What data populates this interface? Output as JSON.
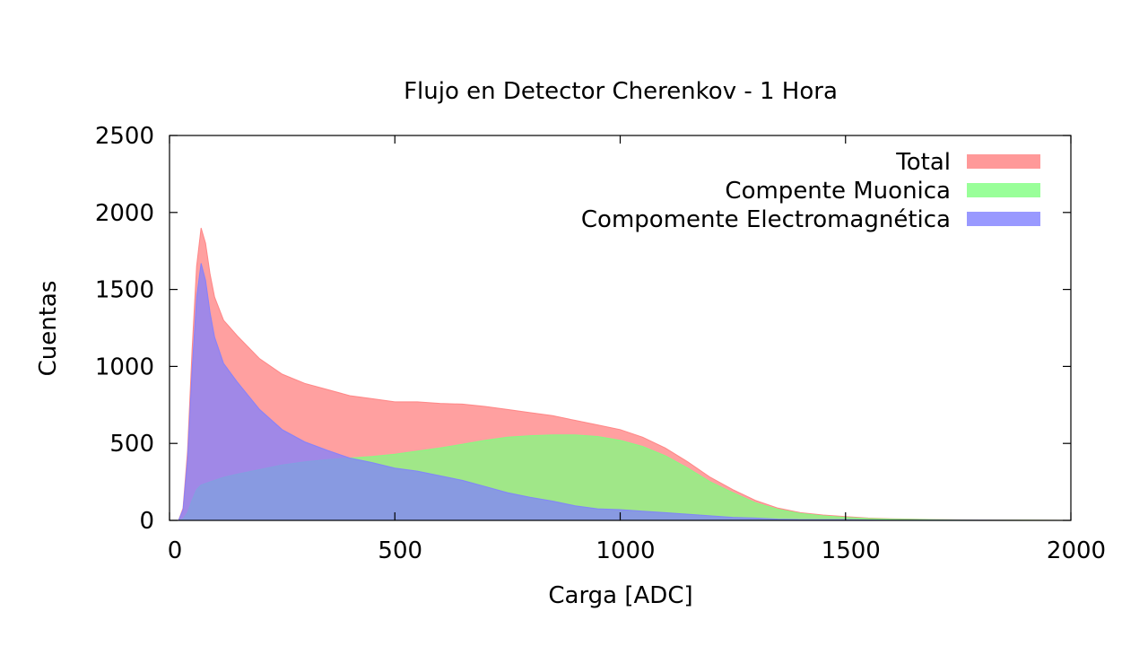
{
  "chart_data": {
    "type": "area",
    "title": "Flujo en Detector Cherenkov - 1 Hora",
    "xlabel": "Carga [ADC]",
    "ylabel": "Cuentas",
    "xlim": [
      0,
      2000
    ],
    "ylim": [
      0,
      2500
    ],
    "xticks": [
      "0",
      "500",
      "1000",
      "1500",
      "2000"
    ],
    "yticks": [
      "0",
      "500",
      "1000",
      "1500",
      "2000",
      "2500"
    ],
    "grid": false,
    "legend_position": "top-right",
    "x": [
      0,
      20,
      30,
      40,
      50,
      60,
      70,
      80,
      90,
      100,
      120,
      150,
      200,
      250,
      300,
      350,
      400,
      450,
      500,
      550,
      600,
      650,
      700,
      750,
      800,
      850,
      900,
      950,
      1000,
      1050,
      1100,
      1150,
      1200,
      1250,
      1300,
      1350,
      1400,
      1450,
      1500,
      1550,
      1600,
      1700,
      1800,
      1900,
      2000
    ],
    "series": [
      {
        "name": "Total",
        "color": "#ff8080",
        "values": [
          0,
          0,
          80,
          450,
          1100,
          1650,
          1900,
          1800,
          1600,
          1450,
          1300,
          1200,
          1050,
          950,
          890,
          850,
          810,
          790,
          770,
          770,
          760,
          755,
          740,
          720,
          700,
          680,
          650,
          620,
          590,
          540,
          470,
          380,
          280,
          200,
          130,
          80,
          50,
          35,
          25,
          15,
          10,
          5,
          3,
          1,
          0
        ]
      },
      {
        "name": "Compente Muonica",
        "color": "#80ff80",
        "values": [
          0,
          0,
          10,
          50,
          130,
          200,
          230,
          240,
          250,
          260,
          280,
          300,
          330,
          360,
          380,
          395,
          405,
          415,
          430,
          450,
          470,
          495,
          520,
          540,
          550,
          555,
          555,
          545,
          520,
          480,
          420,
          340,
          250,
          180,
          115,
          72,
          45,
          30,
          20,
          12,
          8,
          4,
          2,
          1,
          0
        ]
      },
      {
        "name": "Compomente Electromagnética",
        "color": "#8080ff",
        "values": [
          0,
          0,
          70,
          400,
          970,
          1450,
          1670,
          1560,
          1350,
          1190,
          1020,
          900,
          720,
          590,
          510,
          455,
          405,
          375,
          340,
          320,
          290,
          260,
          220,
          180,
          150,
          125,
          95,
          75,
          70,
          60,
          50,
          40,
          30,
          20,
          15,
          8,
          5,
          5,
          5,
          3,
          2,
          1,
          1,
          0,
          0
        ]
      }
    ]
  }
}
